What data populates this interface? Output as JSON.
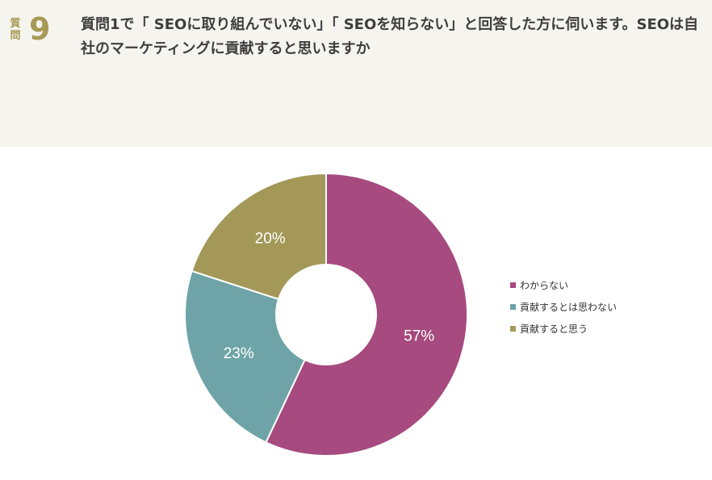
{
  "question": {
    "label": "質問",
    "number": "9",
    "text": "質問1で「 SEOに取り組んでいない」「 SEOを知らない」と回答した方に伺います。SEOは自社のマーケティングに貢献すると思いますか"
  },
  "chart_data": {
    "type": "pie",
    "donut": true,
    "categories": [
      "わからない",
      "貢献するとは思わない",
      "貢献すると思う"
    ],
    "values": [
      57,
      23,
      20
    ],
    "value_labels": [
      "57%",
      "23%",
      "20%"
    ],
    "colors": [
      "#a64a7f",
      "#6ea4a8",
      "#a39858"
    ],
    "legend_placement": "right",
    "start_angle_deg": 0,
    "direction": "clockwise"
  }
}
